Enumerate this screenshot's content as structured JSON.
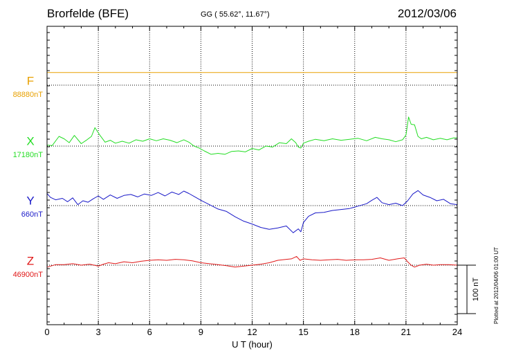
{
  "header": {
    "station": "Brorfelde (BFE)",
    "coords": "GG ( 55.62°,  11.67°)",
    "date": "2012/03/06"
  },
  "footer_note": "Plotted at 2012/04/06 01:00 UT",
  "chart_data": {
    "type": "line",
    "title": "Brorfelde (BFE)",
    "xlabel": "U T (hour)",
    "ylabel": "",
    "xlim": [
      0,
      24
    ],
    "x_ticks": [
      "0",
      "3",
      "6",
      "9",
      "12",
      "15",
      "18",
      "21",
      "24"
    ],
    "grid": true,
    "grid_style": "dotted vertical every 3 h; dotted baseline per trace",
    "scale_bar": {
      "label": "100 nT",
      "value": 100
    },
    "series": [
      {
        "name": "F",
        "baseline_label": "88880nT",
        "baseline_nT": 88880,
        "color": "#e8a000",
        "x": [
          0,
          24
        ],
        "y": [
          88906,
          88906
        ]
      },
      {
        "name": "X",
        "baseline_label": "17180nT",
        "baseline_nT": 17180,
        "color": "#22dd22",
        "x": [
          0,
          0.3,
          0.7,
          1.0,
          1.3,
          1.6,
          2.0,
          2.3,
          2.6,
          2.8,
          3.1,
          3.4,
          3.7,
          4.0,
          4.4,
          4.8,
          5.2,
          5.6,
          6.0,
          6.4,
          6.8,
          7.2,
          7.6,
          8.0,
          8.3,
          8.6,
          8.9,
          9.2,
          9.6,
          10.0,
          10.4,
          10.8,
          11.2,
          11.6,
          12.0,
          12.4,
          12.8,
          13.2,
          13.6,
          14.0,
          14.3,
          14.55,
          14.7,
          14.85,
          15.0,
          15.3,
          15.7,
          16.2,
          16.7,
          17.2,
          17.7,
          18.2,
          18.7,
          19.2,
          19.6,
          20.0,
          20.4,
          20.8,
          21.0,
          21.15,
          21.3,
          21.5,
          21.7,
          21.9,
          22.2,
          22.6,
          23.0,
          23.4,
          23.8,
          24.0
        ],
        "y": [
          17182,
          17181,
          17200,
          17195,
          17187,
          17202,
          17185,
          17192,
          17200,
          17218,
          17202,
          17188,
          17192,
          17186,
          17190,
          17186,
          17193,
          17190,
          17195,
          17191,
          17195,
          17192,
          17187,
          17193,
          17188,
          17180,
          17176,
          17170,
          17163,
          17165,
          17163,
          17169,
          17170,
          17168,
          17175,
          17172,
          17180,
          17178,
          17187,
          17185,
          17195,
          17187,
          17178,
          17176,
          17186,
          17190,
          17194,
          17191,
          17195,
          17192,
          17194,
          17196,
          17191,
          17198,
          17195,
          17193,
          17189,
          17193,
          17203,
          17240,
          17225,
          17224,
          17200,
          17195,
          17198,
          17193,
          17196,
          17193,
          17197,
          17197
        ]
      },
      {
        "name": "Y",
        "baseline_label": "660nT",
        "baseline_nT": 660,
        "color": "#1818c8",
        "x": [
          0,
          0.2,
          0.5,
          0.9,
          1.2,
          1.5,
          1.8,
          2.1,
          2.4,
          2.7,
          3.0,
          3.3,
          3.7,
          4.1,
          4.5,
          4.9,
          5.3,
          5.7,
          6.1,
          6.5,
          6.9,
          7.3,
          7.7,
          8.0,
          8.3,
          8.6,
          9.0,
          9.5,
          10.0,
          10.5,
          11.0,
          11.5,
          12.0,
          12.5,
          13.0,
          13.5,
          14.0,
          14.4,
          14.7,
          14.85,
          15.0,
          15.3,
          15.7,
          16.2,
          16.7,
          17.2,
          17.7,
          18.2,
          18.7,
          19.0,
          19.3,
          19.6,
          20.0,
          20.4,
          20.8,
          21.1,
          21.4,
          21.7,
          22.0,
          22.4,
          22.8,
          23.2,
          23.6,
          24.0
        ],
        "y": [
          685,
          677,
          672,
          675,
          668,
          676,
          662,
          670,
          667,
          674,
          680,
          673,
          682,
          675,
          681,
          683,
          678,
          684,
          681,
          687,
          680,
          688,
          683,
          690,
          685,
          679,
          671,
          662,
          653,
          648,
          637,
          628,
          622,
          615,
          611,
          614,
          618,
          604,
          612,
          606,
          625,
          638,
          645,
          646,
          650,
          652,
          654,
          659,
          664,
          671,
          677,
          666,
          662,
          665,
          660,
          670,
          684,
          691,
          682,
          677,
          670,
          673,
          664,
          662
        ]
      },
      {
        "name": "Z",
        "baseline_label": "46900nT",
        "baseline_nT": 46900,
        "color": "#e01818",
        "x": [
          0,
          0.5,
          1.0,
          1.5,
          2.0,
          2.5,
          3.0,
          3.3,
          3.6,
          4.0,
          4.5,
          5.0,
          5.5,
          6.0,
          6.5,
          7.0,
          7.5,
          8.0,
          8.5,
          9.0,
          9.5,
          10.0,
          10.5,
          11.0,
          11.5,
          12.0,
          12.5,
          13.0,
          13.5,
          14.0,
          14.3,
          14.6,
          14.8,
          15.0,
          15.5,
          16.0,
          16.5,
          17.0,
          17.5,
          18.0,
          18.5,
          19.0,
          19.5,
          20.0,
          20.5,
          20.9,
          21.1,
          21.3,
          21.5,
          21.8,
          22.2,
          22.6,
          23.0,
          23.5,
          24.0
        ],
        "y": [
          46896,
          46901,
          46901,
          46903,
          46900,
          46902,
          46898,
          46902,
          46905,
          46903,
          46907,
          46905,
          46908,
          46910,
          46911,
          46910,
          46912,
          46911,
          46909,
          46905,
          46903,
          46901,
          46899,
          46896,
          46898,
          46900,
          46902,
          46905,
          46910,
          46912,
          46913,
          46918,
          46910,
          46913,
          46911,
          46910,
          46911,
          46912,
          46910,
          46911,
          46911,
          46912,
          46915,
          46910,
          46913,
          46915,
          46907,
          46900,
          46896,
          46900,
          46902,
          46900,
          46901,
          46901,
          46900
        ]
      }
    ]
  }
}
